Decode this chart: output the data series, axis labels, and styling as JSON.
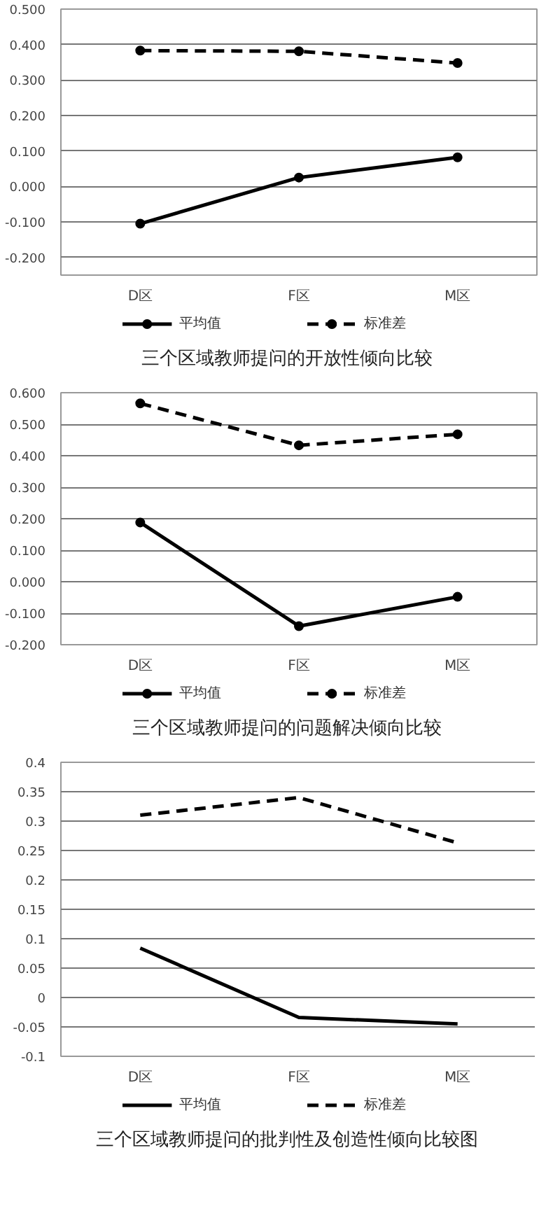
{
  "chart_data": [
    {
      "type": "line",
      "title": "三个区域教师提问的开放性倾向比较",
      "categories": [
        "D区",
        "F区",
        "M区"
      ],
      "marker": "circle",
      "legend": "bottom",
      "grid": "y",
      "ylim": [
        -0.25,
        0.5
      ],
      "yticks": [
        {
          "value": -0.2,
          "label": "-0.200"
        },
        {
          "value": -0.1,
          "label": "-0.100"
        },
        {
          "value": 0,
          "label": "0.000"
        },
        {
          "value": 0.1,
          "label": "0.100"
        },
        {
          "value": 0.2,
          "label": "0.200"
        },
        {
          "value": 0.3,
          "label": "0.300"
        },
        {
          "value": 0.4,
          "label": "0.400"
        },
        {
          "value": 0.5,
          "label": "0.500"
        }
      ],
      "series": [
        {
          "name": "平均值",
          "color": "#000000",
          "line_style": "solid",
          "values": [
            -0.105,
            0.025,
            0.082
          ]
        },
        {
          "name": "标准差",
          "color": "#000000",
          "line_style": "dashed",
          "values": [
            0.383,
            0.381,
            0.348
          ]
        }
      ]
    },
    {
      "type": "line",
      "title": "三个区域教师提问的问题解决倾向比较",
      "categories": [
        "D区",
        "F区",
        "M区"
      ],
      "marker": "circle",
      "legend": "bottom",
      "grid": "y",
      "ylim": [
        -0.2,
        0.6
      ],
      "yticks": [
        {
          "value": -0.2,
          "label": "-0.200"
        },
        {
          "value": -0.1,
          "label": "-0.100"
        },
        {
          "value": 0,
          "label": "0.000"
        },
        {
          "value": 0.1,
          "label": "0.100"
        },
        {
          "value": 0.2,
          "label": "0.200"
        },
        {
          "value": 0.3,
          "label": "0.300"
        },
        {
          "value": 0.4,
          "label": "0.400"
        },
        {
          "value": 0.5,
          "label": "0.500"
        },
        {
          "value": 0.6,
          "label": "0.600"
        }
      ],
      "series": [
        {
          "name": "平均值",
          "color": "#000000",
          "line_style": "solid",
          "values": [
            0.188,
            -0.141,
            -0.048
          ]
        },
        {
          "name": "标准差",
          "color": "#000000",
          "line_style": "dashed",
          "values": [
            0.566,
            0.433,
            0.468
          ]
        }
      ]
    },
    {
      "type": "line",
      "title": "三个区域教师提问的批判性及创造性倾向比较图",
      "categories": [
        "D区",
        "F区",
        "M区"
      ],
      "marker": "none",
      "legend": "bottom",
      "grid": "y",
      "ylim": [
        -0.1,
        0.4
      ],
      "yticks": [
        -0.1,
        -0.05,
        0,
        0.05,
        0.1,
        0.15,
        0.2,
        0.25,
        0.3,
        0.35,
        0.4
      ],
      "series": [
        {
          "name": "平均值",
          "color": "#000000",
          "line_style": "solid",
          "values": [
            0.084,
            -0.034,
            -0.045
          ]
        },
        {
          "name": "标准差",
          "color": "#000000",
          "line_style": "dashed",
          "values": [
            0.31,
            0.34,
            0.263
          ]
        }
      ]
    }
  ]
}
